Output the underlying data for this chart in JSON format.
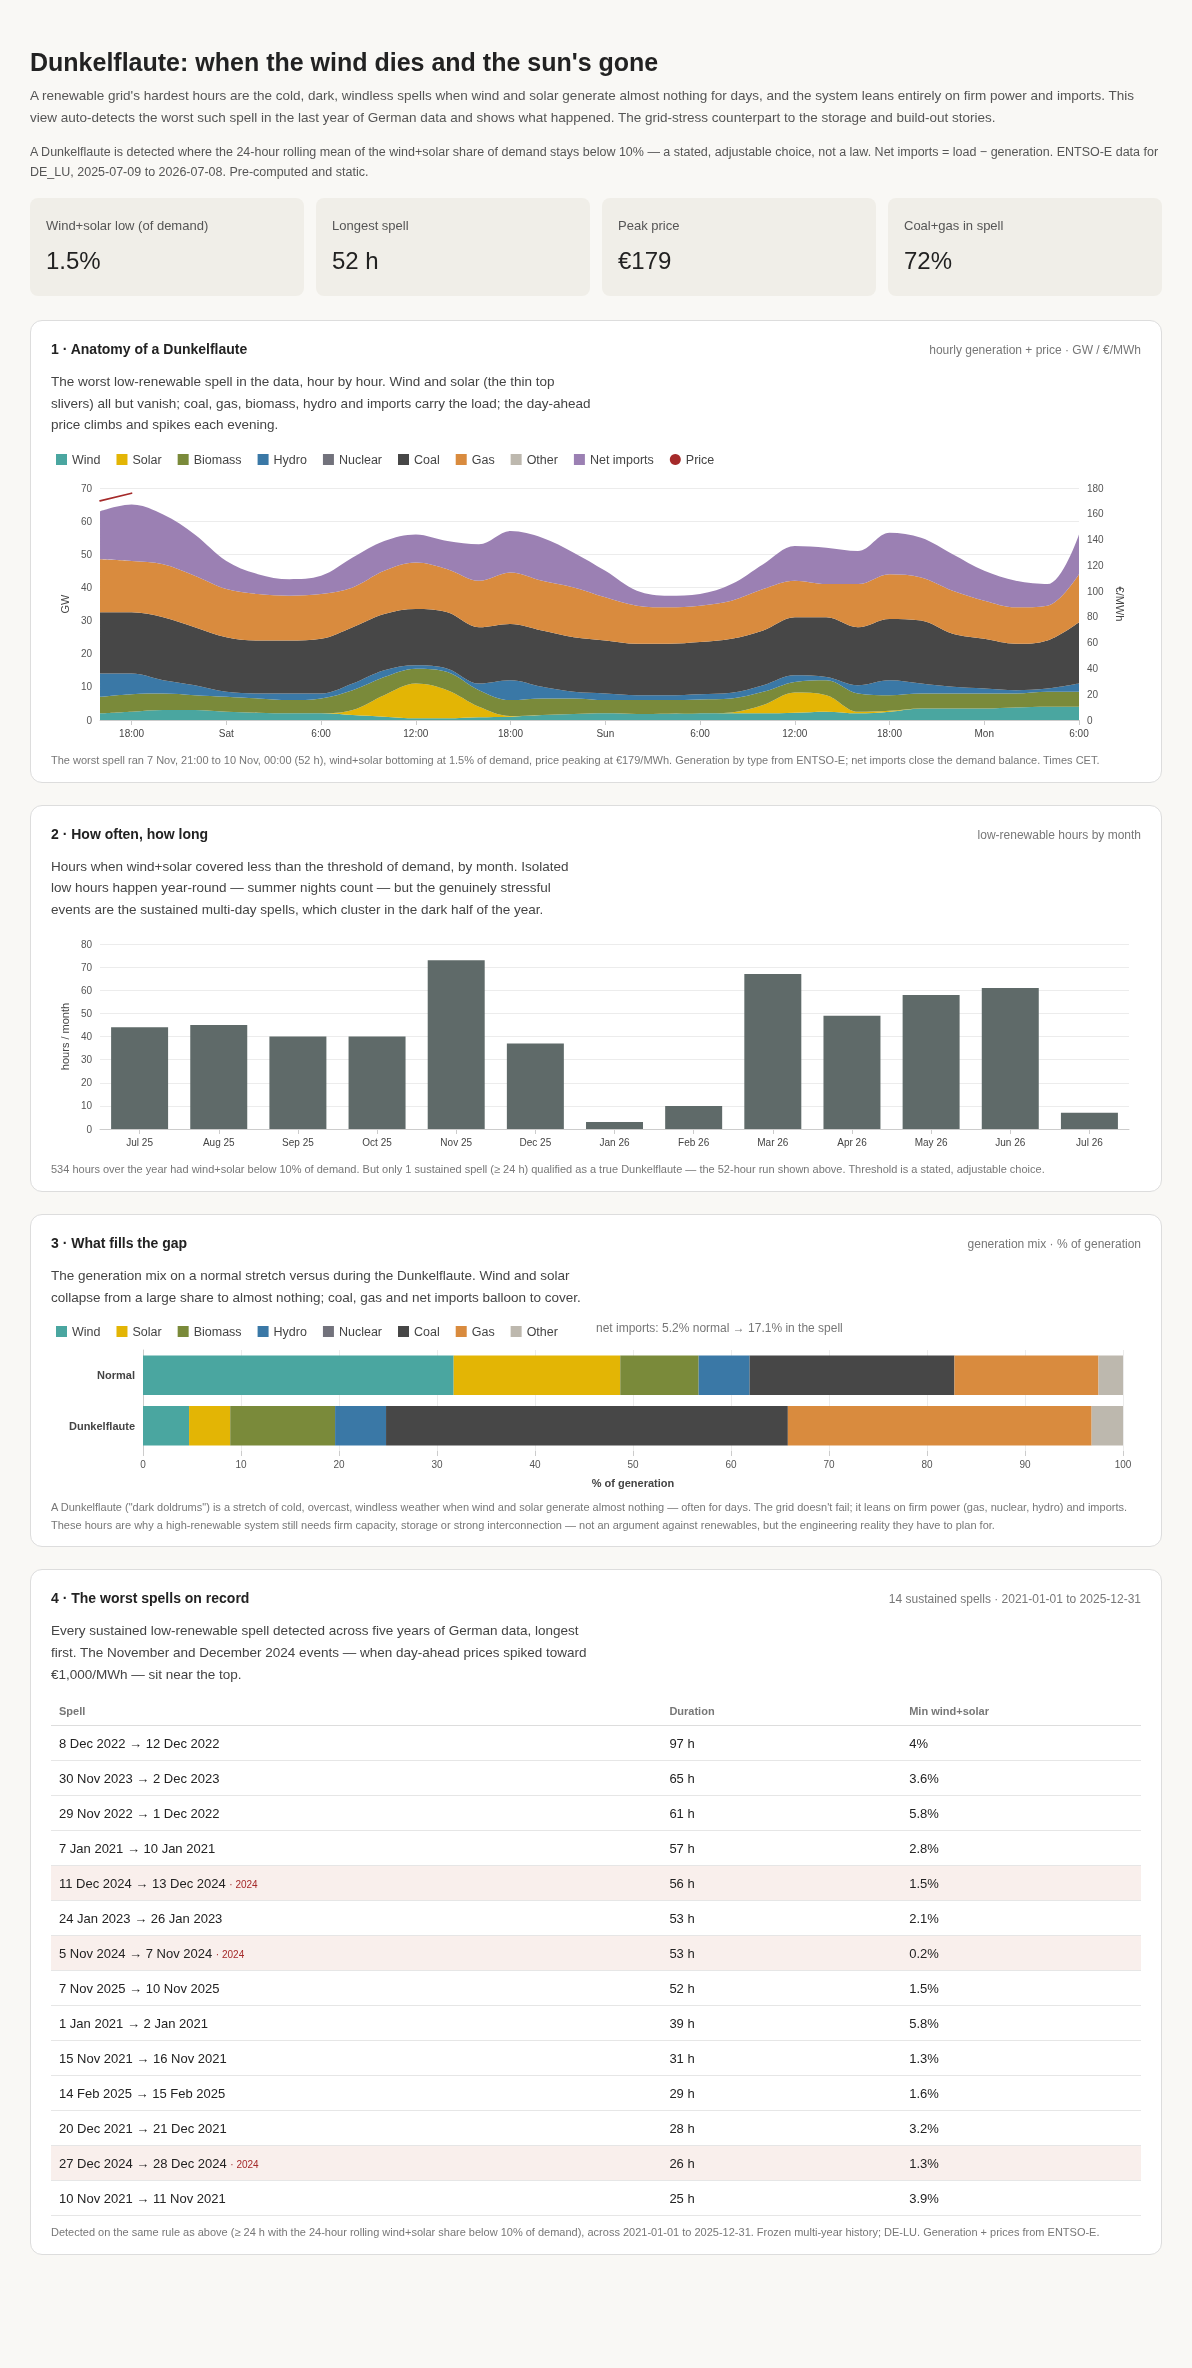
{
  "chart_data": [
    {
      "type": "other",
      "title": "Dunkelflaute: when the wind dies and the sun's gone",
      "subtitle": "A renewable grid's hardest hours are the cold, dark, windless spells when wind and solar generate almost nothing for days, and the system leans entirely on firm power and imports. This view auto-detects the worst such spell in the last year of German data and shows what happened. The grid-stress counterpart to the storage and build-out stories.",
      "annotations": [
        "A Dunkelflaute is detected where the 24-hour rolling mean of the wind+solar share of demand stays below 10% — a stated, adjustable choice, not a law. Net imports = load − generation. ENTSO-E data for DE_LU, 2025-07-09 to 2026-07-08. Pre-computed and static."
      ],
      "categories": [
        "Wind+solar low (of demand)",
        "Longest spell",
        "Peak price",
        "Coal+gas in spell"
      ],
      "value_labels": [
        "1.5%",
        "52 h",
        "€179",
        "72%"
      ]
    },
    {
      "type": "area",
      "title": "1 · Anatomy of a Dunkelflaute",
      "subtitle": "The worst low-renewable spell in the data, hour by hour. Wind and solar (the thin top slivers) all but vanish; coal, gas, biomass, hydro and imports carry the load; the day-ahead price climbs and spikes each evening.",
      "annotations": [
        "hourly generation + price · GW / €/MWh",
        "The worst spell ran 7 Nov, 21:00 to 10 Nov, 00:00 (52 h), wind+solar bottoming at 1.5% of demand, price peaking at €179/MWh. Generation by type from ENTSO-E; net imports close the demand balance. Times CET."
      ],
      "ylabel": "GW",
      "y2label": "€/MWh",
      "stacked": true,
      "legend": "top",
      "grid": "y",
      "marker": "none",
      "categories": [
        null,
        "18:00",
        null,
        null,
        "Sat",
        null,
        null,
        "6:00",
        null,
        null,
        "12:00",
        null,
        null,
        "18:00",
        null,
        null,
        "Sun",
        null,
        null,
        "6:00",
        null,
        null,
        "12:00",
        null,
        null,
        "18:00",
        null,
        null,
        "Mon",
        null,
        null,
        "6:00"
      ],
      "ylim": [
        0,
        70
      ],
      "yticks": [
        0,
        10,
        20,
        30,
        40,
        50,
        60,
        70
      ],
      "y2lim": [
        0,
        180
      ],
      "y2ticks": [
        0,
        20,
        40,
        60,
        80,
        100,
        120,
        140,
        160,
        180
      ],
      "series": [
        {
          "name": "Wind",
          "color": "#4aa6a0",
          "values": [
            2,
            2.5,
            3,
            3,
            2.5,
            2.2,
            2,
            2,
            1.5,
            1,
            0.5,
            0.5,
            0.8,
            1,
            1.5,
            1.8,
            2,
            1.8,
            1.9,
            2,
            2,
            2,
            2.2,
            2.5,
            2,
            2.5,
            3.5,
            3.5,
            3.5,
            3.8,
            4,
            4
          ]
        },
        {
          "name": "Solar",
          "color": "#e3b505",
          "values": [
            0,
            0,
            0,
            0,
            0,
            0,
            0,
            0,
            1.5,
            6.5,
            10.5,
            8.5,
            3.2,
            0.2,
            0,
            0,
            0,
            0,
            0,
            0,
            0.3,
            2.5,
            6.1,
            5,
            0.5,
            0.3,
            0,
            0,
            0,
            0,
            0,
            0
          ]
        },
        {
          "name": "Biomass",
          "color": "#7a8a3a",
          "values": [
            5,
            5.3,
            5,
            4.5,
            4.5,
            4.3,
            4,
            4.5,
            6,
            5.5,
            4.5,
            5.5,
            5,
            4.8,
            5,
            4.7,
            4,
            4.2,
            4.1,
            4.2,
            4.2,
            4,
            3.2,
            4.5,
            5.5,
            4.7,
            4.5,
            4.5,
            4.5,
            4.2,
            4.5,
            4.5
          ]
        },
        {
          "name": "Hydro",
          "color": "#3a78a6",
          "values": [
            7,
            6.2,
            4,
            3,
            1.5,
            1.5,
            2,
            1.5,
            2,
            2,
            1,
            1,
            2,
            6,
            3.5,
            2,
            2,
            1.5,
            1.5,
            1.6,
            1.7,
            2,
            2,
            1,
            2.5,
            4.5,
            3,
            2,
            1.5,
            1,
            1,
            2.5
          ]
        },
        {
          "name": "Nuclear",
          "color": "#72727c",
          "values": [
            null,
            null,
            null,
            null,
            null,
            null,
            null,
            null,
            null,
            null,
            null,
            null,
            null,
            null,
            null,
            null,
            null,
            null,
            null,
            null,
            null,
            null,
            null,
            null,
            null,
            null,
            null,
            null,
            null,
            null,
            null,
            null
          ]
        },
        {
          "name": "Coal",
          "color": "#474747",
          "values": [
            18.5,
            18.5,
            19,
            17.5,
            16.5,
            16,
            16,
            16.5,
            17,
            17,
            17,
            17,
            17,
            17,
            17,
            16.5,
            16,
            15.5,
            15.5,
            15.7,
            16.3,
            16.5,
            17.5,
            18,
            17.5,
            18.5,
            19,
            16,
            15,
            14,
            14.5,
            18.5
          ]
        },
        {
          "name": "Gas",
          "color": "#d98b3e",
          "values": [
            16,
            15.5,
            16,
            15.5,
            14.5,
            14,
            13.5,
            13.5,
            12,
            13,
            14,
            13,
            14,
            15.5,
            15,
            15,
            13,
            11.5,
            11,
            11,
            11.5,
            12.5,
            11,
            10,
            13,
            13.5,
            13,
            13,
            11.5,
            11,
            10.5,
            14.5
          ]
        },
        {
          "name": "Other",
          "color": "#bdb8ae",
          "values": [
            null,
            null,
            null,
            null,
            null,
            null,
            null,
            null,
            null,
            null,
            null,
            null,
            null,
            null,
            null,
            null,
            null,
            null,
            null,
            null,
            null,
            null,
            null,
            null,
            null,
            null,
            null,
            null,
            null,
            null,
            null,
            null
          ]
        },
        {
          "name": "Net imports",
          "color": "#9b80b3",
          "values": [
            14.5,
            17,
            15,
            12.5,
            8.5,
            6,
            5,
            5.5,
            9,
            9,
            8.5,
            8.5,
            11,
            12.5,
            13,
            10.5,
            8,
            4.5,
            3.5,
            3.5,
            5,
            7.5,
            10.5,
            11,
            10,
            12.5,
            12,
            11,
            9,
            8,
            6.5,
            12
          ]
        },
        {
          "name": "Price",
          "type": "line",
          "axis": "y2",
          "color": "#a52a2a",
          "values": [
            170,
            176,
            null,
            null,
            null,
            null,
            null,
            null,
            null,
            null,
            null,
            null,
            null,
            null,
            null,
            null,
            null,
            null,
            null,
            null,
            null,
            null,
            null,
            null,
            null,
            null,
            null,
            null,
            null,
            null,
            null,
            null
          ]
        }
      ]
    },
    {
      "type": "bar",
      "title": "2 · How often, how long",
      "subtitle": "Hours when wind+solar covered less than the threshold of demand, by month. Isolated low hours happen year-round — summer nights count — but the genuinely stressful events are the sustained multi-day spells, which cluster in the dark half of the year.",
      "annotations": [
        "low-renewable hours by month",
        "534 hours over the year had wind+solar below 10% of demand. But only 1 sustained spell (≥ 24 h) qualified as a true Dunkelflaute — the 52-hour run shown above. Threshold is a stated, adjustable choice."
      ],
      "ylabel": "hours / month",
      "grid": "y",
      "categories": [
        "Jul 25",
        "Aug 25",
        "Sep 25",
        "Oct 25",
        "Nov 25",
        "Dec 25",
        "Jan 26",
        "Feb 26",
        "Mar 26",
        "Apr 26",
        "May 26",
        "Jun 26",
        "Jul 26"
      ],
      "values": [
        44,
        45,
        40,
        40,
        73,
        37,
        3,
        10,
        67,
        49,
        58,
        61,
        7
      ],
      "color": "#5f6a69",
      "ylim": [
        0,
        80
      ],
      "yticks": [
        0,
        10,
        20,
        30,
        40,
        50,
        60,
        70,
        80
      ]
    },
    {
      "type": "bar",
      "orientation": "horizontal",
      "stacked": true,
      "title": "3 · What fills the gap",
      "subtitle": "The generation mix on a normal stretch versus during the Dunkelflaute. Wind and solar collapse from a large share to almost nothing; coal, gas and net imports balloon to cover.",
      "annotations": [
        "generation mix · % of generation",
        "net imports: 5.2% normal → 17.1% in the spell",
        "A Dunkelflaute (\"dark doldrums\") is a stretch of cold, overcast, windless weather when wind and solar generate almost nothing — often for days. The grid doesn't fail; it leans on firm power (gas, nuclear, hydro) and imports. These hours are why a high-renewable system still needs firm capacity, storage or strong interconnection — not an argument against renewables, but the engineering reality they have to plan for."
      ],
      "xlabel": "% of generation",
      "legend": "top",
      "grid": "x",
      "categories": [
        "Normal",
        "Dunkelflaute"
      ],
      "xlim": [
        0,
        100
      ],
      "xticks": [
        0,
        10,
        20,
        30,
        40,
        50,
        60,
        70,
        80,
        90,
        100
      ],
      "series": [
        {
          "name": "Wind",
          "color": "#4aa6a0",
          "values": [
            31.7,
            4.7
          ]
        },
        {
          "name": "Solar",
          "color": "#e3b505",
          "values": [
            17,
            4.2
          ]
        },
        {
          "name": "Biomass",
          "color": "#7a8a3a",
          "values": [
            8,
            10.7
          ]
        },
        {
          "name": "Hydro",
          "color": "#3a78a6",
          "values": [
            5.2,
            5.2
          ]
        },
        {
          "name": "Nuclear",
          "color": "#72727c",
          "values": [
            0,
            0
          ]
        },
        {
          "name": "Coal",
          "color": "#474747",
          "values": [
            20.9,
            41
          ]
        },
        {
          "name": "Gas",
          "color": "#d98b3e",
          "values": [
            14.7,
            31
          ]
        },
        {
          "name": "Other",
          "color": "#bdb8ae",
          "values": [
            2.5,
            3.2
          ]
        }
      ]
    },
    {
      "type": "other",
      "title": "4 · The worst spells on record",
      "subtitle": "Every sustained low-renewable spell detected across five years of German data, longest first. The November and December 2024 events — when day-ahead prices spiked toward €1,000/MWh — sit near the top.",
      "annotations": [
        "14 sustained spells · 2021-01-01 to 2025-12-31",
        "Detected on the same rule as above (≥ 24 h with the 24-hour rolling wind+solar share below 10% of demand), across 2021-01-01 to 2025-12-31. Frozen multi-year history; DE-LU. Generation + prices from ENTSO-E.",
        {
          "text": "· 2024",
          "y": "11 Dec 2024 → 13 Dec 2024"
        },
        {
          "text": "· 2024",
          "y": "5 Nov 2024 → 7 Nov 2024"
        },
        {
          "text": "· 2024",
          "y": "27 Dec 2024 → 28 Dec 2024"
        }
      ],
      "categories": [
        "Spell",
        "Duration",
        "Min wind+solar"
      ],
      "cell_labels": [
        [
          "8 Dec 2022 → 12 Dec 2022",
          "97 h",
          "4%"
        ],
        [
          "30 Nov 2023 → 2 Dec 2023",
          "65 h",
          "3.6%"
        ],
        [
          "29 Nov 2022 → 1 Dec 2022",
          "61 h",
          "5.8%"
        ],
        [
          "7 Jan 2021 → 10 Jan 2021",
          "57 h",
          "2.8%"
        ],
        [
          "11 Dec 2024 → 13 Dec 2024",
          "56 h",
          "1.5%"
        ],
        [
          "24 Jan 2023 → 26 Jan 2023",
          "53 h",
          "2.1%"
        ],
        [
          "5 Nov 2024 → 7 Nov 2024",
          "53 h",
          "0.2%"
        ],
        [
          "7 Nov 2025 → 10 Nov 2025",
          "52 h",
          "1.5%"
        ],
        [
          "1 Jan 2021 → 2 Jan 2021",
          "39 h",
          "5.8%"
        ],
        [
          "15 Nov 2021 → 16 Nov 2021",
          "31 h",
          "1.3%"
        ],
        [
          "14 Feb 2025 → 15 Feb 2025",
          "29 h",
          "1.6%"
        ],
        [
          "20 Dec 2021 → 21 Dec 2021",
          "28 h",
          "3.2%"
        ],
        [
          "27 Dec 2024 → 28 Dec 2024",
          "26 h",
          "1.3%"
        ],
        [
          "10 Nov 2021 → 11 Nov 2021",
          "25 h",
          "3.9%"
        ]
      ]
    }
  ]
}
